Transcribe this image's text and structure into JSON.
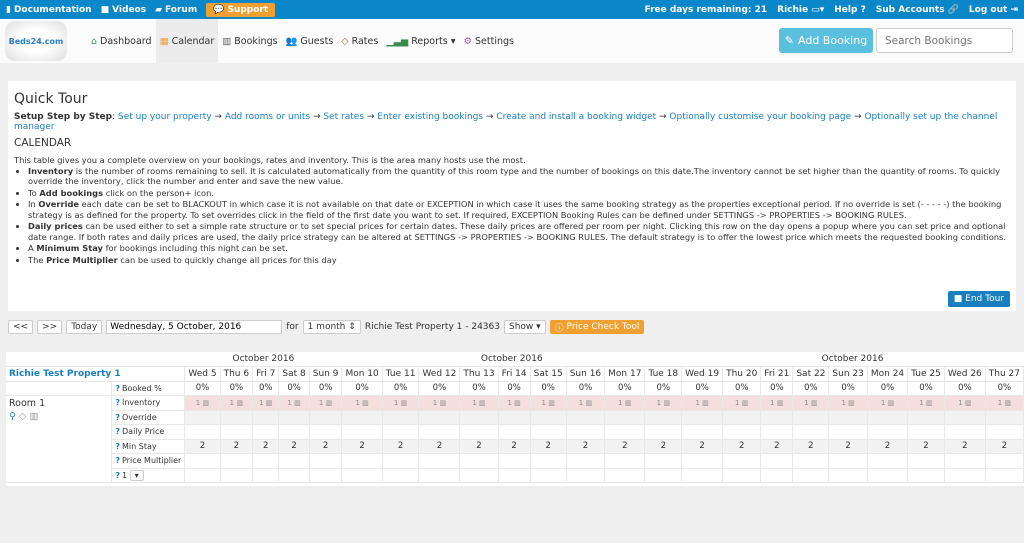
{
  "topbar": {
    "links": [
      "Documentation",
      "Videos",
      "Forum"
    ],
    "support": "Support",
    "free_days": "Free days remaining: 21",
    "user": "Richie",
    "help": "Help ?",
    "sub_accounts": "Sub Accounts",
    "logout": "Log out",
    "accent": "#0a87c9"
  },
  "nav": {
    "logo": "Beds24.com",
    "items": [
      "Dashboard",
      "Calendar",
      "Bookings",
      "Guests",
      "Rates",
      "Reports",
      "Settings"
    ],
    "active": "Calendar",
    "add_booking": "Add Booking",
    "search_placeholder": "Search Bookings"
  },
  "tour": {
    "title": "Quick Tour",
    "setup_label": "Setup Step by Step",
    "steps": [
      "Set up your property",
      "Add rooms or units",
      "Set rates",
      "Enter existing bookings",
      "Create and install a booking widget",
      "Optionally customise your booking page",
      "Optionally set up the channel manager"
    ],
    "section": "CALENDAR",
    "intro": "This table gives you a complete overview on your bookings, rates and inventory. This is the area many hosts use the most.",
    "bullets": [
      {
        "b": "Inventory",
        "t": " is the number of rooms remaining to sell. It is calculated automatically from the quantity of this room type and the number of bookings on this date.The inventory cannot be set higher than the quantity of rooms. To quickly override the inventory, click the number and enter and save the new value."
      },
      {
        "pre": "To ",
        "b": "Add bookings",
        "t": " click on the person+ icon."
      },
      {
        "pre": "In ",
        "b": "Override",
        "t": " each date can be set to BLACKOUT in which case it is not available on that date or EXCEPTION in which case it uses the same booking strategy as the properties exceptional period. If no override is set (- - - - -) the booking strategy is as defined for the property. To set overrides click in the field of the first date you want to set. If required, EXCEPTION Booking Rules can be defined under SETTINGS -> PROPERTIES -> BOOKING RULES."
      },
      {
        "b": "Daily prices",
        "t": " can be used either to set a simple rate structure or to set special prices for certain dates. These daily prices are offered per room per night. Clicking this row on the day opens a popup where you can set price and optional date range. If both rates and daily prices are used, the daily price strategy can be altered at SETTINGS -> PROPERTIES -> BOOKING RULES. The default strategy is to offer the lowest price which meets the requested booking conditions."
      },
      {
        "pre": "A ",
        "b": "Minimum Stay",
        "t": " for bookings including this night can be set."
      },
      {
        "pre": "The ",
        "b": "Price Multiplier",
        "t": " can be used to quickly change all prices for this day"
      }
    ],
    "end_tour": "End Tour"
  },
  "controls": {
    "prev": "<<",
    "next": ">>",
    "today": "Today",
    "date": "Wednesday, 5 October, 2016",
    "for": "for",
    "period": "1 month",
    "property": "Richie Test Property 1 - 24363",
    "show": "Show",
    "price_check": "Price Check Tool"
  },
  "calendar": {
    "property": "Richie Test Property 1",
    "month_headers": [
      "October 2016",
      "October 2016",
      "October 2016"
    ],
    "days": [
      "Wed 5",
      "Thu 6",
      "Fri 7",
      "Sat 8",
      "Sun 9",
      "Mon 10",
      "Tue 11",
      "Wed 12",
      "Thu 13",
      "Fri 14",
      "Sat 15",
      "Sun 16",
      "Mon 17",
      "Tue 18",
      "Wed 19",
      "Thu 20",
      "Fri 21",
      "Sat 22",
      "Sun 23",
      "Mon 24",
      "Tue 25",
      "Wed 26",
      "Thu 27"
    ],
    "booked_label": "Booked %",
    "booked_value": "0%",
    "room": "Room 1",
    "rows": [
      "Inventory",
      "Override",
      "Daily Price",
      "Min Stay",
      "Price Multiplier",
      "1"
    ],
    "inventory_value": "1",
    "min_stay_value": "2"
  }
}
